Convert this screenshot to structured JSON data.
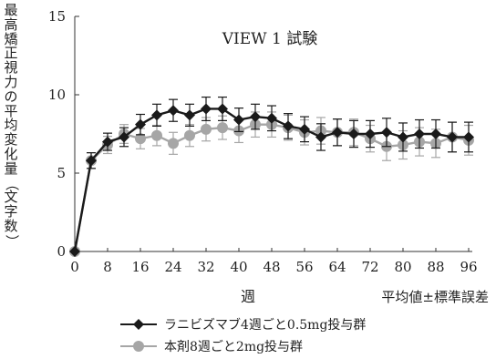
{
  "chart_data": {
    "type": "line",
    "title": "VIEW 1 試験",
    "xlabel": "週",
    "ylabel": "最高矯正視力の平均変化量（文字数）",
    "note": "平均値±標準誤差",
    "x_ticks": [
      0,
      8,
      16,
      24,
      32,
      40,
      48,
      56,
      64,
      72,
      80,
      88,
      96
    ],
    "y_ticks": [
      0,
      5,
      10,
      15
    ],
    "xlim": [
      0,
      96
    ],
    "ylim": [
      0,
      15
    ],
    "x": [
      0,
      4,
      8,
      12,
      16,
      20,
      24,
      28,
      32,
      36,
      40,
      44,
      48,
      52,
      56,
      60,
      64,
      68,
      72,
      76,
      80,
      84,
      88,
      92,
      96
    ],
    "series": [
      {
        "name": "ラニビズマブ4週ごと0.5mg投与群",
        "color": "#1a1a1a",
        "marker": "diamond",
        "values": [
          0,
          5.8,
          7.0,
          7.3,
          8.1,
          8.7,
          9.0,
          8.7,
          9.1,
          9.1,
          8.4,
          8.6,
          8.5,
          8.0,
          7.8,
          7.3,
          7.6,
          7.5,
          7.5,
          7.6,
          7.3,
          7.5,
          7.5,
          7.3,
          7.3
        ],
        "error": [
          0,
          0.5,
          0.55,
          0.6,
          0.65,
          0.7,
          0.7,
          0.7,
          0.75,
          0.75,
          0.75,
          0.8,
          0.8,
          0.8,
          0.8,
          0.85,
          0.85,
          0.85,
          0.85,
          0.9,
          0.9,
          0.9,
          0.9,
          0.95,
          0.95
        ]
      },
      {
        "name": "本剤8週ごと2mg投与群",
        "color": "#a6a6a6",
        "marker": "circle",
        "values": [
          0,
          5.8,
          6.8,
          7.5,
          7.2,
          7.4,
          6.9,
          7.4,
          7.8,
          7.9,
          7.7,
          8.1,
          8.1,
          7.9,
          7.6,
          7.7,
          7.6,
          7.6,
          7.2,
          6.7,
          6.8,
          7.0,
          6.9,
          7.3,
          7.1
        ],
        "error": [
          0,
          0.5,
          0.55,
          0.6,
          0.65,
          0.65,
          0.7,
          0.7,
          0.75,
          0.75,
          0.75,
          0.8,
          0.8,
          0.8,
          0.8,
          0.85,
          0.85,
          0.85,
          0.85,
          0.9,
          0.9,
          0.9,
          0.9,
          0.95,
          0.95
        ]
      }
    ],
    "legend_position": "bottom-left"
  }
}
